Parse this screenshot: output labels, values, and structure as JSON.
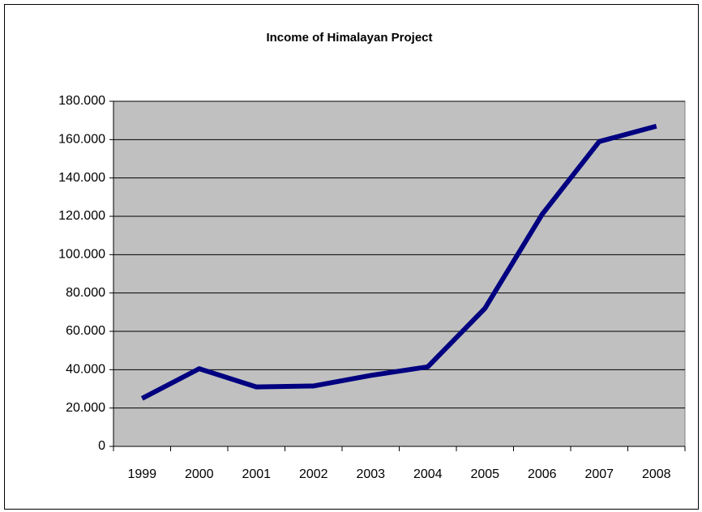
{
  "chart_data": {
    "type": "line",
    "title": "Income of Himalayan Project",
    "categories": [
      "1999",
      "2000",
      "2001",
      "2002",
      "2003",
      "2004",
      "2005",
      "2006",
      "2007",
      "2008"
    ],
    "series": [
      {
        "name": "Income",
        "color": "#000080",
        "values": [
          25000,
          40500,
          31000,
          31500,
          37000,
          41500,
          72000,
          121000,
          159000,
          167000
        ]
      }
    ],
    "ylim": [
      0,
      180000
    ],
    "yticks": [
      0,
      {
        "value": 20000,
        "label": "20.000"
      },
      {
        "value": 40000,
        "label": "40.000"
      },
      {
        "value": 60000,
        "label": "60.000"
      },
      {
        "value": 80000,
        "label": "80.000"
      },
      {
        "value": 100000,
        "label": "100.000"
      },
      {
        "value": 120000,
        "label": "120.000"
      },
      {
        "value": 140000,
        "label": "140.000"
      },
      {
        "value": 160000,
        "label": "160.000"
      },
      {
        "value": 180000,
        "label": "180.000"
      }
    ],
    "grid": true,
    "plot_background": "#c0c0c0"
  }
}
